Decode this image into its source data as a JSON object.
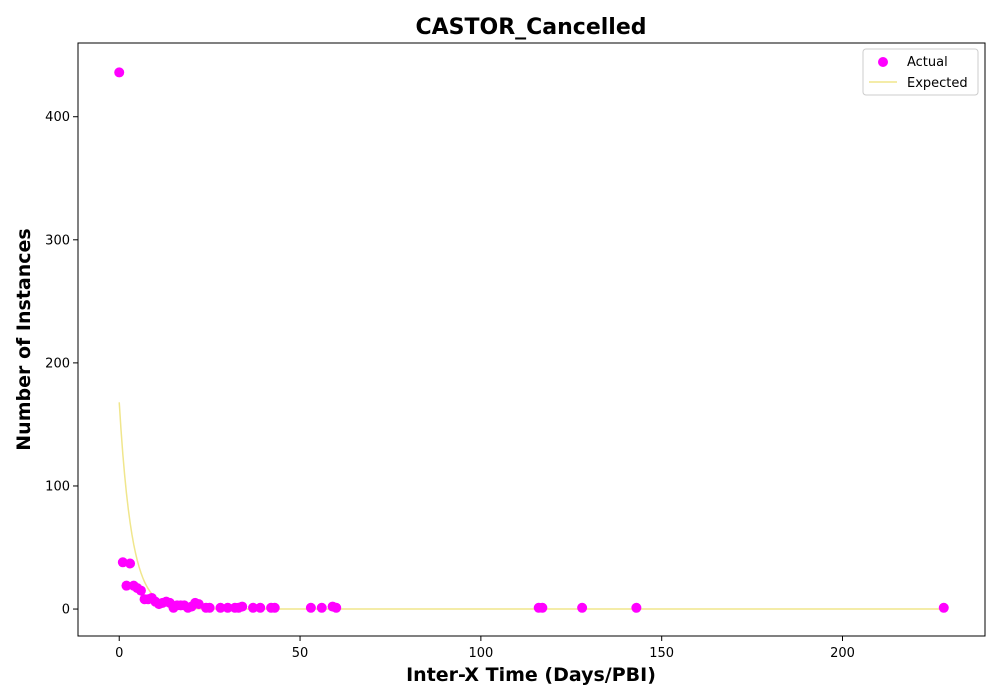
{
  "chart_data": {
    "type": "scatter",
    "title": "CASTOR_Cancelled",
    "xlabel": "Inter-X Time (Days/PBI)",
    "ylabel": "Number of Instances",
    "xlim": [
      -11.4,
      239.4
    ],
    "ylim": [
      -21.9,
      459.9
    ],
    "xticks": [
      0,
      50,
      100,
      150,
      200
    ],
    "yticks": [
      0,
      100,
      200,
      300,
      400
    ],
    "grid": false,
    "legend_position": "top-right",
    "series": [
      {
        "name": "Actual",
        "kind": "scatter",
        "color": "#ff00ff",
        "points": [
          [
            0,
            436
          ],
          [
            1,
            38
          ],
          [
            2,
            19
          ],
          [
            3,
            37
          ],
          [
            4,
            19
          ],
          [
            5,
            17
          ],
          [
            6,
            15
          ],
          [
            7,
            8
          ],
          [
            8,
            8
          ],
          [
            9,
            9
          ],
          [
            10,
            6
          ],
          [
            11,
            4
          ],
          [
            12,
            5
          ],
          [
            13,
            6
          ],
          [
            14,
            5
          ],
          [
            15,
            1
          ],
          [
            16,
            3
          ],
          [
            17,
            3
          ],
          [
            18,
            3
          ],
          [
            19,
            1
          ],
          [
            20,
            2
          ],
          [
            21,
            5
          ],
          [
            22,
            4
          ],
          [
            24,
            1
          ],
          [
            25,
            1
          ],
          [
            28,
            1
          ],
          [
            30,
            1
          ],
          [
            32,
            1
          ],
          [
            33,
            1
          ],
          [
            34,
            2
          ],
          [
            37,
            1
          ],
          [
            39,
            1
          ],
          [
            42,
            1
          ],
          [
            43,
            1
          ],
          [
            53,
            1
          ],
          [
            56,
            1
          ],
          [
            59,
            2
          ],
          [
            60,
            1
          ],
          [
            116,
            1
          ],
          [
            117,
            1
          ],
          [
            128,
            1
          ],
          [
            143,
            1
          ],
          [
            228,
            1
          ]
        ]
      },
      {
        "name": "Expected",
        "kind": "line",
        "color": "#f0e68c",
        "model": "exponential",
        "y0": 168,
        "decay_rate": 0.29,
        "x_start": 0,
        "x_end": 228
      }
    ]
  }
}
